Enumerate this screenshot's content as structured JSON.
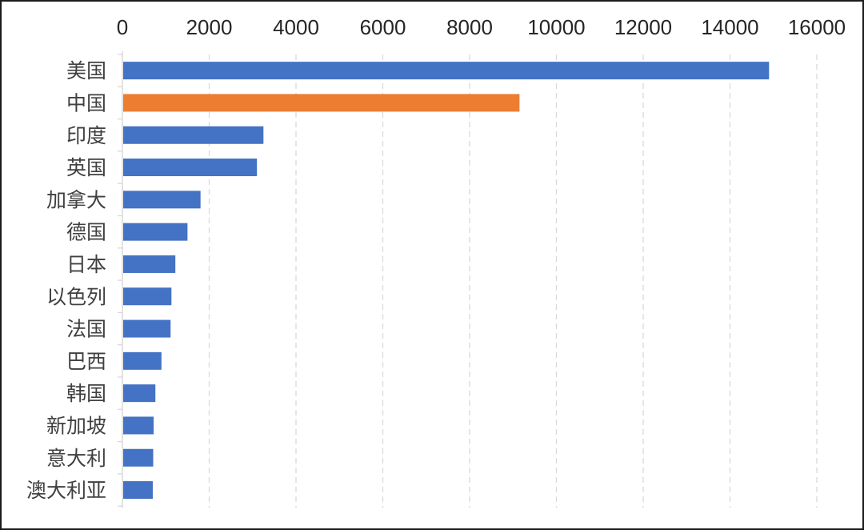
{
  "chart_data": {
    "type": "bar",
    "orientation": "horizontal",
    "xlim": [
      0,
      16000
    ],
    "xticks": [
      "0",
      "2000",
      "4000",
      "6000",
      "8000",
      "10000",
      "12000",
      "14000",
      "16000"
    ],
    "xaxis_position": "top",
    "grid": "vertical dashed",
    "categories": [
      "美国",
      "中国",
      "印度",
      "英国",
      "加拿大",
      "德国",
      "日本",
      "以色列",
      "法国",
      "巴西",
      "韩国",
      "新加坡",
      "意大利",
      "澳大利亚"
    ],
    "values": [
      14900,
      9150,
      3250,
      3100,
      1800,
      1500,
      1220,
      1130,
      1110,
      900,
      760,
      720,
      710,
      700
    ],
    "colors": [
      "#4472C4",
      "#ED7D31",
      "#4472C4",
      "#4472C4",
      "#4472C4",
      "#4472C4",
      "#4472C4",
      "#4472C4",
      "#4472C4",
      "#4472C4",
      "#4472C4",
      "#4472C4",
      "#4472C4",
      "#4472C4"
    ],
    "default_color": "#4472C4",
    "highlight_color": "#ED7D31"
  }
}
